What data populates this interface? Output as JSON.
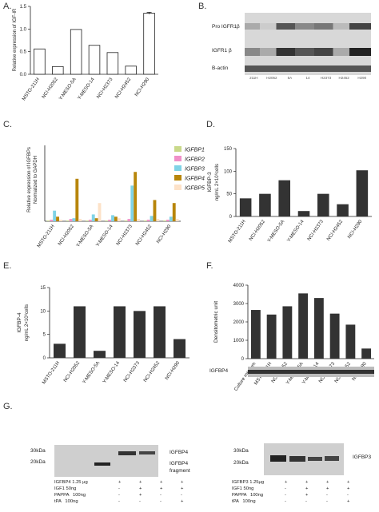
{
  "panels": {
    "A": {
      "letter": "A."
    },
    "B": {
      "letter": "B."
    },
    "C": {
      "letter": "C."
    },
    "D": {
      "letter": "D."
    },
    "E": {
      "letter": "E."
    },
    "F": {
      "letter": "F."
    },
    "G": {
      "letter": "G."
    }
  },
  "cell_lines": [
    "MSTO-211H",
    "NCI-H2052",
    "Y-MESO-5A",
    "Y-MESO-14",
    "NCI-H2373",
    "NCI-H2452",
    "NCI-H290"
  ],
  "chart_data": [
    {
      "id": "A",
      "type": "bar",
      "ylabel": "Relative expression of IGF-IR",
      "ylim": [
        0,
        1.5
      ],
      "yticks": [
        "0.0",
        "0.5",
        "1.0",
        "1.5"
      ],
      "categories": [
        "MSTO-211H",
        "NCI-H2052",
        "Y-MESO-5A",
        "Y-MESO-14",
        "NCI-H2373",
        "NCI-H2452",
        "NCI-H290"
      ],
      "values": [
        0.56,
        0.17,
        0.99,
        0.64,
        0.48,
        0.18,
        1.35
      ],
      "errors": [
        0,
        0,
        0,
        0,
        0,
        0,
        0.02
      ],
      "bar_color": "#ffffff"
    },
    {
      "id": "C",
      "type": "bar",
      "ylabel": "Relative expression of IGFBPs Normalized to GAPDH",
      "categories": [
        "MSTO-211H",
        "NCI-H2052",
        "Y-MESO-5A",
        "Y-MESO-14",
        "NCI-H2373",
        "NCI-H2452",
        "NCI-H290"
      ],
      "ylim": [
        0,
        0.1
      ],
      "series": [
        {
          "name": "IGFBP1",
          "color": "#c9d98a",
          "values": [
            0.001,
            0.001,
            0.001,
            0.001,
            0.001,
            0.001,
            0.001
          ]
        },
        {
          "name": "IGFBP2",
          "color": "#f090c8",
          "values": [
            0.002,
            0.003,
            0.002,
            0.002,
            0.003,
            0.002,
            0.002
          ]
        },
        {
          "name": "IGFBP3",
          "color": "#7fd3e6",
          "values": [
            0.014,
            0.004,
            0.009,
            0.008,
            0.047,
            0.007,
            0.006
          ]
        },
        {
          "name": "IGFBP4",
          "color": "#b8860b",
          "values": [
            0.006,
            0.056,
            0.004,
            0.006,
            0.065,
            0.028,
            0.024
          ]
        },
        {
          "name": "IGFBP5",
          "color": "#fde2c8",
          "values": [
            0.002,
            0.003,
            0.024,
            0.004,
            0.003,
            0.003,
            0.003
          ]
        }
      ],
      "legend_position": "top-right"
    },
    {
      "id": "D",
      "type": "bar",
      "ylabel": "IGFBP-3",
      "ylabel2": "ng/mL 2×10⁶cells",
      "ylim": [
        0,
        150
      ],
      "yticks": [
        "0",
        "50",
        "100",
        "150"
      ],
      "categories": [
        "MSTO-211H",
        "NCI-H2052",
        "Y-MESO-5A",
        "Y-MESO-14",
        "NCI-H2373",
        "NCI-H2452",
        "NCI-H290"
      ],
      "values": [
        40,
        50,
        80,
        12,
        50,
        27,
        102
      ],
      "bar_color": "#333333"
    },
    {
      "id": "E",
      "type": "bar",
      "ylabel": "IGFBP-4",
      "ylabel2": "ng/mL 2×10⁶cells",
      "ylim": [
        0,
        15
      ],
      "yticks": [
        "0",
        "5",
        "10",
        "15"
      ],
      "categories": [
        "MSTO-211H",
        "NCI-H2052",
        "Y-MESO-5A",
        "Y-MESO-14",
        "NCI-H2373",
        "NCI-H2452",
        "NCI-H290"
      ],
      "values": [
        3,
        11,
        1.5,
        11,
        10,
        11,
        4
      ],
      "bar_color": "#333333"
    },
    {
      "id": "F",
      "type": "bar",
      "ylabel": "Densitometric unit",
      "ylim": [
        0,
        4000
      ],
      "yticks": [
        "0",
        "1000",
        "2000",
        "3000",
        "4000"
      ],
      "categories": [
        "Culture medium",
        "MSTO-211H",
        "NCI-H2052",
        "Y-MESO-5A",
        "Y-MESO-14",
        "NCI-H2373",
        "NCI-H2452",
        "NCI-H290"
      ],
      "values": [
        2650,
        2400,
        2850,
        3550,
        3300,
        2450,
        1850,
        550
      ],
      "bar_color": "#333333"
    }
  ],
  "blot_B": {
    "labels": [
      "Pro IGFR1β",
      "IGFR1 β",
      "Β-actin"
    ],
    "lanes": [
      "211H",
      "H2052",
      "5A",
      "14",
      "H2373",
      "H2452",
      "H290"
    ]
  },
  "blot_F": {
    "label": "IGFBP4"
  },
  "blot_G1": {
    "markers": [
      "30kDa",
      "20kDa"
    ],
    "labels": [
      "IGFBP4",
      "IGFBP4",
      "fragment"
    ],
    "conditions": [
      {
        "label": "IGFBP4 1.25 μg",
        "signs": [
          "+",
          "+",
          "+",
          "+"
        ]
      },
      {
        "label": "IGF1 50ng",
        "signs": [
          "-",
          "+",
          "+",
          "+"
        ]
      },
      {
        "label": "PAPPA   100ng",
        "signs": [
          "-",
          "+",
          "-",
          "-"
        ]
      },
      {
        "label": "tPA   100ng",
        "signs": [
          "-",
          "-",
          "-",
          "+"
        ]
      }
    ]
  },
  "blot_G2": {
    "markers": [
      "30kDa",
      "20kDa"
    ],
    "labels": [
      "IGFBP3"
    ],
    "conditions": [
      {
        "label": "IGFBP3 1.25μg",
        "signs": [
          "+",
          "+",
          "+",
          "+"
        ]
      },
      {
        "label": "IGF1 50ng",
        "signs": [
          "-",
          "+",
          "+",
          "+"
        ]
      },
      {
        "label": "PAPPA   100ng",
        "signs": [
          "-",
          "+",
          "-",
          "-"
        ]
      },
      {
        "label": "tPA   100ng",
        "signs": [
          "-",
          "-",
          "-",
          "+"
        ]
      }
    ]
  }
}
